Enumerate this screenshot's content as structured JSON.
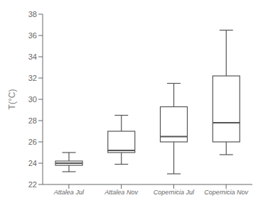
{
  "chart_data": {
    "type": "box",
    "categories": [
      "Attalea Jul",
      "Attalea Nov",
      "Copernicia Jul",
      "Copernicia Nov"
    ],
    "boxes": [
      {
        "whislo": 23.2,
        "q1": 23.8,
        "med": 24.0,
        "q3": 24.2,
        "whishi": 25.0
      },
      {
        "whislo": 23.9,
        "q1": 25.0,
        "med": 25.2,
        "q3": 27.0,
        "whishi": 28.5
      },
      {
        "whislo": 23.0,
        "q1": 26.0,
        "med": 26.5,
        "q3": 29.3,
        "whishi": 31.5
      },
      {
        "whislo": 24.8,
        "q1": 26.0,
        "med": 27.8,
        "q3": 32.2,
        "whishi": 36.5
      }
    ],
    "ylabel": "T(°C)",
    "ylim": [
      22,
      38
    ],
    "yticks": [
      22,
      24,
      26,
      28,
      30,
      32,
      34,
      36,
      38
    ],
    "color": "#555555",
    "grid": false
  }
}
